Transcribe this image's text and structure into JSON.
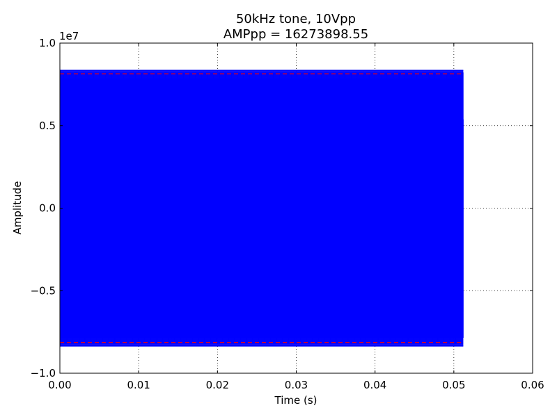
{
  "chart_data": {
    "type": "line",
    "title_lines": [
      "50kHz tone, 10Vpp",
      "AMPpp = 16273898.55"
    ],
    "xlabel": "Time (s)",
    "ylabel": "Amplitude",
    "xlim": [
      0.0,
      0.06
    ],
    "ylim": [
      -10000000,
      10000000
    ],
    "y_offset_label": "1e7",
    "x_ticks": [
      {
        "value": 0.0,
        "label": "0.00"
      },
      {
        "value": 0.01,
        "label": "0.01"
      },
      {
        "value": 0.02,
        "label": "0.02"
      },
      {
        "value": 0.03,
        "label": "0.03"
      },
      {
        "value": 0.04,
        "label": "0.04"
      },
      {
        "value": 0.05,
        "label": "0.05"
      },
      {
        "value": 0.06,
        "label": "0.06"
      }
    ],
    "y_ticks": [
      {
        "value": 10000000,
        "label": "1.0"
      },
      {
        "value": 5000000,
        "label": "0.5"
      },
      {
        "value": 0,
        "label": "0.0"
      },
      {
        "value": -5000000,
        "label": "−0.5"
      },
      {
        "value": -10000000,
        "label": "−1.0"
      }
    ],
    "grid": true,
    "series": [
      {
        "color": "#0000ff",
        "style": "solid",
        "kind": "tone",
        "frequency_hz": 50000,
        "amplitude": 8350000,
        "t_start": 0.0,
        "t_end": 0.0512
      }
    ],
    "reference_lines": [
      {
        "y": 8136949.275,
        "color": "#ff0000",
        "style": "dashed",
        "x_start": 0.0,
        "x_end": 0.0512
      },
      {
        "y": -8136949.275,
        "color": "#ff0000",
        "style": "dashed",
        "x_start": 0.0,
        "x_end": 0.0512
      }
    ]
  }
}
